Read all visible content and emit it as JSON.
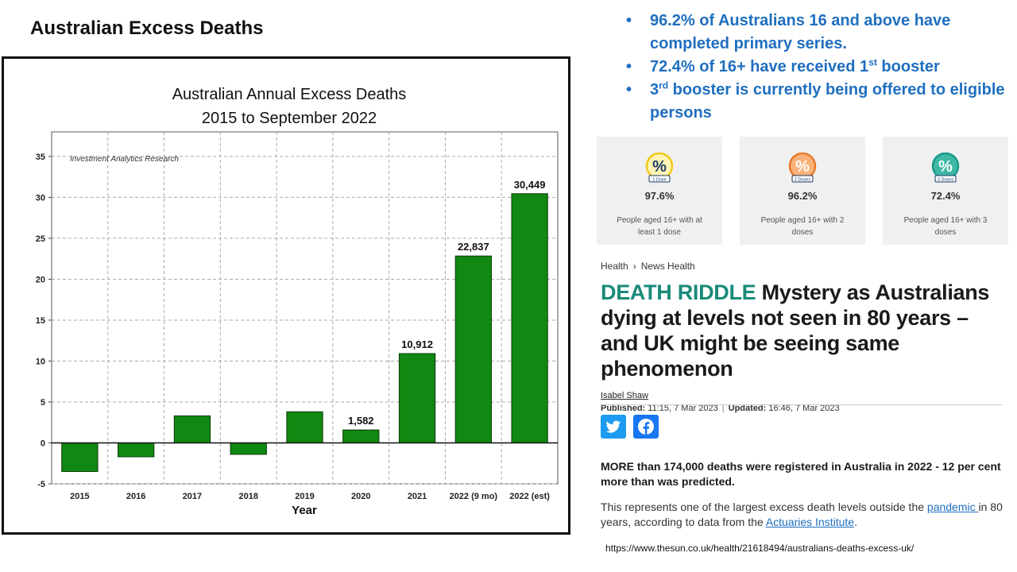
{
  "slide_title": "Australian Excess Deaths",
  "bullets": [
    {
      "text": "96.2% of Australians 16 and above have completed primary series."
    },
    {
      "text": "72.4% of 16+ have received 1",
      "sup": "st",
      "after": " booster"
    },
    {
      "text": "3",
      "sup": "rd",
      "after": " booster is currently being offered to eligible persons"
    }
  ],
  "cards": [
    {
      "badge": "1 Dose",
      "value": "97.6%",
      "desc": "People aged 16+ with at least 1 dose",
      "color": "#f3c81e",
      "fill": "#fff4b3"
    },
    {
      "badge": "2 Doses",
      "value": "96.2%",
      "desc": "People aged 16+ with 2 doses",
      "color": "#e8792b",
      "fill": "#f9b27a"
    },
    {
      "badge": "3 Doses",
      "value": "72.4%",
      "desc": "People aged 16+ with 3 doses",
      "color": "#1a9a88",
      "fill": "#3fb8a4"
    }
  ],
  "article": {
    "crumb1": "Health",
    "crumb2": "News Health",
    "kicker": "DEATH RIDDLE",
    "headline": " Mystery as Australians dying at levels not seen in 80 years – and UK might be seeing same phenomenon",
    "author": "Isabel Shaw",
    "published_label": "Published:",
    "published": " 11:15, 7 Mar 2023",
    "updated_label": "Updated:",
    "updated": " 16:46, 7 Mar 2023",
    "lead": "MORE than 174,000 deaths were registered in Australia in 2022 - 12 per cent more than was predicted.",
    "body_1": "This represents one of the largest excess death levels outside the ",
    "link_1": "pandemic ",
    "body_2": "in 80 years, according to data from the ",
    "link_2": "Actuaries Institute",
    "body_3": "."
  },
  "source_url": "https://www.thesun.co.uk/health/21618494/australians-deaths-excess-uk/",
  "chart_data": {
    "type": "bar",
    "title": "Australian Annual Excess Deaths",
    "subtitle": "2015 to September 2022",
    "watermark": "Investment Analytics Research",
    "xlabel": "Year",
    "ylabel": "",
    "categories": [
      "2015",
      "2016",
      "2017",
      "2018",
      "2019",
      "2020",
      "2021",
      "2022 (9 mo)",
      "2022 (est)"
    ],
    "values": [
      -3.5,
      -1.7,
      3.3,
      -1.4,
      3.8,
      1.582,
      10.912,
      22.837,
      30.449
    ],
    "data_labels": [
      "",
      "",
      "",
      "",
      "",
      "1,582",
      "10,912",
      "22,837",
      "30,449"
    ],
    "yticks": [
      -5,
      0,
      5,
      10,
      15,
      20,
      25,
      30,
      35
    ],
    "ylim": [
      -5,
      38
    ],
    "grid": true,
    "bar_color": "#118811"
  }
}
